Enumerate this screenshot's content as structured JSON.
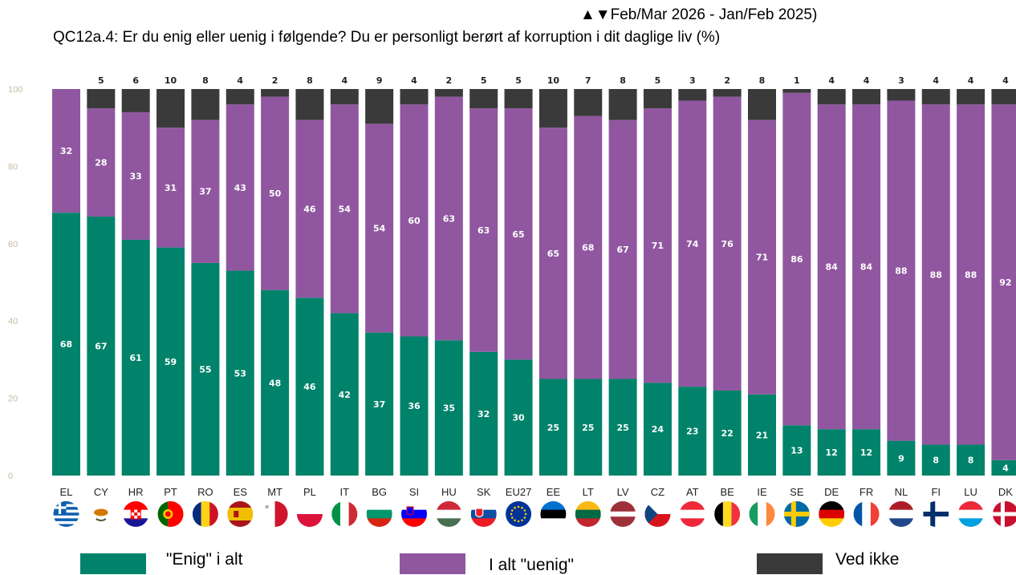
{
  "header": {
    "subtitle": "▲▼Feb/Mar 2026 - Jan/Feb 2025)",
    "title": "QC12a.4: Er du enig eller uenig i følgende? Du er personligt berørt af korruption i dit daglige liv (%)"
  },
  "colors": {
    "agree": "#00836a",
    "disagree": "#9057a0",
    "dont_know": "#3a3a3a",
    "axis_tick": "#c9b8a4"
  },
  "chart_data": {
    "type": "bar",
    "stacked": true,
    "orientation": "vertical",
    "categories": [
      "EL",
      "CY",
      "HR",
      "PT",
      "RO",
      "ES",
      "MT",
      "PL",
      "IT",
      "BG",
      "SI",
      "HU",
      "SK",
      "EU27",
      "EE",
      "LT",
      "LV",
      "CZ",
      "AT",
      "BE",
      "IE",
      "SE",
      "DE",
      "FR",
      "NL",
      "FI",
      "LU",
      "DK"
    ],
    "series": [
      {
        "name": "\"Enig\" i alt",
        "color": "#00836a",
        "values": [
          68,
          67,
          61,
          59,
          55,
          53,
          48,
          46,
          42,
          37,
          36,
          35,
          32,
          30,
          25,
          25,
          25,
          24,
          23,
          22,
          21,
          13,
          12,
          12,
          9,
          8,
          8,
          4
        ]
      },
      {
        "name": "I alt \"uenig\"",
        "color": "#9057a0",
        "values": [
          32,
          28,
          33,
          31,
          37,
          43,
          50,
          46,
          54,
          54,
          60,
          63,
          63,
          65,
          65,
          68,
          67,
          71,
          74,
          76,
          71,
          86,
          84,
          84,
          88,
          88,
          88,
          92
        ]
      },
      {
        "name": "Ved ikke",
        "color": "#3a3a3a",
        "values": [
          null,
          5,
          6,
          10,
          8,
          4,
          2,
          8,
          4,
          9,
          4,
          2,
          5,
          5,
          10,
          7,
          8,
          5,
          3,
          2,
          8,
          1,
          4,
          4,
          3,
          4,
          4,
          4
        ]
      }
    ],
    "ylim": [
      0,
      100
    ],
    "yticks": [
      0,
      20,
      40,
      60,
      80,
      100
    ],
    "legend_position": "bottom",
    "flags": [
      "greece-flag-icon",
      "cyprus-flag-icon",
      "croatia-flag-icon",
      "portugal-flag-icon",
      "romania-flag-icon",
      "spain-flag-icon",
      "malta-flag-icon",
      "poland-flag-icon",
      "italy-flag-icon",
      "bulgaria-flag-icon",
      "slovenia-flag-icon",
      "hungary-flag-icon",
      "slovakia-flag-icon",
      "eu-flag-icon",
      "estonia-flag-icon",
      "lithuania-flag-icon",
      "latvia-flag-icon",
      "czechia-flag-icon",
      "austria-flag-icon",
      "belgium-flag-icon",
      "ireland-flag-icon",
      "sweden-flag-icon",
      "germany-flag-icon",
      "france-flag-icon",
      "netherlands-flag-icon",
      "finland-flag-icon",
      "luxembourg-flag-icon",
      "denmark-flag-icon"
    ]
  },
  "legend": {
    "agree_label": "\"Enig\" i alt",
    "disagree_label": "I alt \"uenig\"",
    "dont_know_label": "Ved ikke"
  }
}
